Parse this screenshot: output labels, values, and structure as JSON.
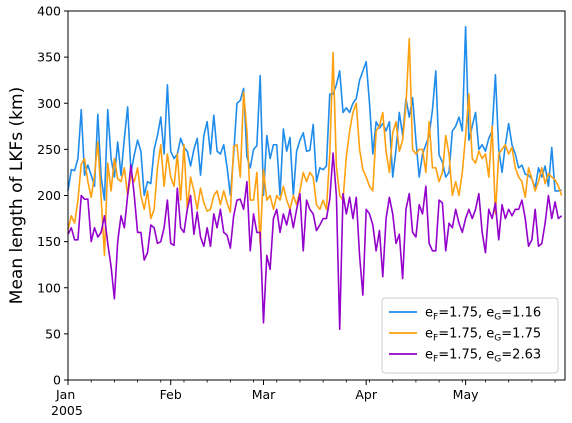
{
  "chart_data": {
    "type": "line",
    "title": "",
    "xlabel": "",
    "ylabel": "Mean length of LKFs (km)",
    "start_date": "2005-01-01",
    "end_date": "2005-05-31",
    "ylim": [
      0,
      400
    ],
    "yticks": [
      0,
      50,
      100,
      150,
      200,
      250,
      300,
      350,
      400
    ],
    "xticks": [
      {
        "date": "2005-01-01",
        "label": "Jan",
        "sublabel": "2005"
      },
      {
        "date": "2005-02-01",
        "label": "Feb",
        "sublabel": ""
      },
      {
        "date": "2005-03-01",
        "label": "Mar",
        "sublabel": ""
      },
      {
        "date": "2005-04-01",
        "label": "Apr",
        "sublabel": ""
      },
      {
        "date": "2005-05-01",
        "label": "May",
        "sublabel": ""
      }
    ],
    "grid": false,
    "legend_position": "bottom-right",
    "series": [
      {
        "name": "e_F=1.75, e_G=1.16",
        "legend_parts": [
          "e",
          "F",
          "=1.75, e",
          "G",
          "=1.16"
        ],
        "color": "#1f8ceb",
        "values": [
          205,
          228,
          227,
          240,
          293,
          222,
          233,
          222,
          210,
          288,
          220,
          195,
          293,
          240,
          220,
          258,
          222,
          262,
          296,
          225,
          244,
          260,
          248,
          200,
          215,
          213,
          250,
          265,
          285,
          245,
          320,
          248,
          240,
          245,
          262,
          252,
          248,
          232,
          250,
          262,
          222,
          265,
          280,
          245,
          287,
          248,
          245,
          255,
          231,
          200,
          245,
          300,
          303,
          316,
          242,
          230,
          250,
          254,
          330,
          200,
          265,
          240,
          255,
          255,
          200,
          272,
          248,
          263,
          200,
          248,
          260,
          268,
          248,
          249,
          277,
          215,
          230,
          228,
          232,
          310,
          310,
          320,
          335,
          290,
          295,
          290,
          300,
          305,
          325,
          335,
          345,
          300,
          245,
          280,
          273,
          278,
          270,
          280,
          220,
          250,
          290,
          265,
          305,
          285,
          306,
          260,
          220,
          245,
          255,
          265,
          293,
          335,
          244,
          236,
          220,
          225,
          270,
          275,
          285,
          270,
          383,
          260,
          275,
          290,
          250,
          255,
          248,
          262,
          270,
          331,
          250,
          225,
          255,
          278,
          255,
          245,
          230,
          233,
          223,
          222,
          218,
          208,
          230,
          220,
          232,
          210,
          252,
          205,
          205,
          206
        ]
      },
      {
        "name": "e_F=1.75, e_G=1.75",
        "legend_parts": [
          "e",
          "F",
          "=1.75, e",
          "G",
          "=1.75"
        ],
        "color": "#ffa010",
        "values": [
          163,
          178,
          170,
          195,
          234,
          240,
          215,
          198,
          222,
          258,
          198,
          135,
          235,
          205,
          240,
          218,
          215,
          230,
          200,
          222,
          215,
          230,
          200,
          185,
          205,
          175,
          185,
          230,
          255,
          210,
          245,
          220,
          210,
          245,
          195,
          255,
          185,
          220,
          205,
          185,
          208,
          192,
          183,
          185,
          200,
          205,
          190,
          205,
          192,
          182,
          253,
          255,
          220,
          312,
          270,
          195,
          195,
          225,
          147,
          228,
          195,
          200,
          185,
          200,
          195,
          210,
          195,
          185,
          200,
          190,
          205,
          225,
          215,
          225,
          220,
          190,
          185,
          195,
          185,
          245,
          355,
          232,
          200,
          195,
          242,
          270,
          290,
          300,
          250,
          228,
          220,
          210,
          205,
          270,
          275,
          290,
          248,
          225,
          268,
          280,
          248,
          260,
          298,
          370,
          250,
          245,
          250,
          250,
          225,
          280,
          230,
          230,
          215,
          225,
          265,
          245,
          200,
          215,
          200,
          225,
          265,
          310,
          240,
          235,
          248,
          240,
          245,
          220,
          275,
          180,
          245,
          250,
          255,
          245,
          252,
          230,
          220,
          215,
          198,
          230,
          218,
          205,
          215,
          230,
          213,
          224,
          220,
          217,
          210,
          200
        ]
      },
      {
        "name": "e_F=1.75, e_G=2.63",
        "legend_parts": [
          "e",
          "F",
          "=1.75, e",
          "G",
          "=2.63"
        ],
        "color": "#9400cc",
        "values": [
          158,
          165,
          152,
          152,
          200,
          196,
          196,
          150,
          165,
          155,
          160,
          178,
          148,
          123,
          88,
          150,
          178,
          165,
          200,
          233,
          200,
          160,
          160,
          130,
          138,
          168,
          165,
          148,
          150,
          165,
          195,
          148,
          146,
          208,
          165,
          160,
          185,
          200,
          158,
          182,
          155,
          145,
          165,
          145,
          180,
          165,
          185,
          160,
          157,
          143,
          178,
          195,
          196,
          185,
          215,
          140,
          180,
          160,
          160,
          62,
          135,
          120,
          175,
          185,
          160,
          180,
          168,
          185,
          165,
          185,
          202,
          140,
          195,
          185,
          180,
          162,
          168,
          175,
          175,
          196,
          246,
          200,
          55,
          202,
          180,
          198,
          175,
          198,
          135,
          92,
          185,
          180,
          168,
          140,
          162,
          112,
          175,
          198,
          180,
          148,
          158,
          110,
          185,
          202,
          160,
          155,
          190,
          180,
          210,
          148,
          140,
          140,
          195,
          192,
          140,
          170,
          165,
          185,
          170,
          160,
          175,
          185,
          175,
          185,
          202,
          160,
          138,
          185,
          175,
          192,
          152,
          190,
          175,
          185,
          178,
          185,
          185,
          195,
          175,
          145,
          152,
          185,
          145,
          148,
          170,
          200,
          175,
          193,
          175,
          178
        ]
      }
    ]
  }
}
